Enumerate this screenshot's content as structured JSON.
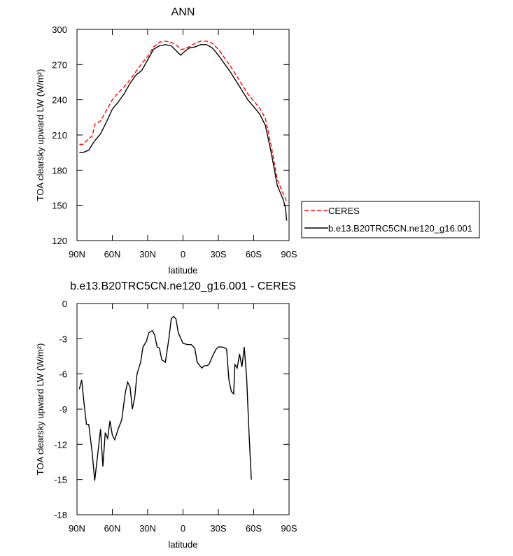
{
  "chart_data": [
    {
      "type": "line",
      "title": "ANN",
      "xlabel": "latitude",
      "ylabel": "TOA clearsky upward LW (W/m²)",
      "x": [
        88,
        85,
        80,
        77,
        75,
        70,
        65,
        60,
        55,
        50,
        45,
        40,
        35,
        30,
        25,
        20,
        15,
        10,
        5,
        2,
        0,
        -5,
        -10,
        -15,
        -20,
        -25,
        -30,
        -35,
        -40,
        -45,
        -50,
        -55,
        -60,
        -65,
        -70,
        -75,
        -80,
        -85,
        -87,
        -88
      ],
      "series": [
        {
          "name": "CERES",
          "color": "#ff0000",
          "dashed": true,
          "values": [
            202,
            202,
            207,
            209,
            219,
            222,
            231,
            240,
            246,
            251,
            257,
            264,
            271,
            277,
            285,
            289,
            290,
            289,
            286,
            283,
            283,
            285,
            288,
            290,
            290,
            288,
            283,
            276,
            269,
            261,
            253,
            245,
            239,
            233,
            224,
            200,
            172,
            160,
            156,
            152
          ]
        },
        {
          "name": "b.e13.B20TRC5CN.ne120_g16.001",
          "color": "#000000",
          "dashed": false,
          "values": [
            195,
            195,
            197,
            202,
            205,
            211,
            221,
            232,
            238,
            245,
            254,
            261,
            265,
            274,
            283,
            286,
            287,
            286,
            281,
            278,
            280,
            284,
            285,
            287,
            287,
            284,
            278,
            271,
            264,
            256,
            248,
            240,
            234,
            228,
            218,
            194,
            167,
            155,
            148,
            137
          ]
        }
      ],
      "xlim": [
        90,
        -90
      ],
      "xticks": [
        {
          "value": 90,
          "label": "90N"
        },
        {
          "value": 60,
          "label": "60N"
        },
        {
          "value": 30,
          "label": "30N"
        },
        0,
        {
          "value": -30,
          "label": "30S"
        },
        {
          "value": -60,
          "label": "60S"
        },
        {
          "value": -90,
          "label": "90S"
        }
      ],
      "ylim": [
        120,
        300
      ],
      "yticks": [
        120,
        150,
        180,
        210,
        240,
        270,
        300
      ],
      "legend": "right"
    },
    {
      "type": "line",
      "title": "b.e13.B20TRC5CN.ne120_g16.001 - CERES",
      "xlabel": "latitude",
      "ylabel": "TOA clearsky upward LW (W/m²)",
      "x": [
        88,
        86,
        84,
        82,
        80,
        77,
        75,
        72,
        70,
        68,
        66,
        64,
        62,
        60,
        58,
        55,
        52,
        49,
        47,
        45,
        43,
        41,
        39,
        36,
        34,
        31,
        29,
        26,
        24,
        22,
        20,
        18,
        15,
        12,
        10,
        8,
        6,
        4,
        0,
        -4,
        -7,
        -10,
        -12,
        -16,
        -18,
        -20,
        -22,
        -25,
        -28,
        -30,
        -33,
        -36,
        -37,
        -39,
        -41,
        -43,
        -44,
        -46,
        -48,
        -50,
        -52,
        -54,
        -56,
        -58
      ],
      "color": "#000000",
      "values": [
        -7.3,
        -6.5,
        -8.5,
        -10.3,
        -10.3,
        -12.8,
        -15.1,
        -12.5,
        -10.7,
        -13.9,
        -11,
        -11.5,
        -10,
        -11.2,
        -11.6,
        -10.7,
        -9.9,
        -7.6,
        -6.7,
        -7.1,
        -9,
        -8,
        -6,
        -5,
        -3.7,
        -3.2,
        -2.5,
        -2.3,
        -2.7,
        -3.7,
        -3.8,
        -4.8,
        -5,
        -3,
        -1.3,
        -1.1,
        -1.3,
        -2.5,
        -3.4,
        -3.5,
        -3.5,
        -3.8,
        -5,
        -5.5,
        -5.3,
        -5.3,
        -5.2,
        -4.5,
        -3.9,
        -3.7,
        -3.7,
        -3.8,
        -3.9,
        -6.5,
        -7.5,
        -7.7,
        -5.2,
        -5.5,
        -4.3,
        -5.4,
        -3.7,
        -6.3,
        -11,
        -15
      ],
      "xlim": [
        90,
        -90
      ],
      "xticks": [
        {
          "value": 90,
          "label": "90N"
        },
        {
          "value": 60,
          "label": "60N"
        },
        {
          "value": 30,
          "label": "30N"
        },
        0,
        {
          "value": -30,
          "label": "30S"
        },
        {
          "value": -60,
          "label": "60S"
        },
        {
          "value": -90,
          "label": "90S"
        }
      ],
      "ylim": [
        -18,
        0
      ],
      "yticks": [
        -18,
        -15,
        -12,
        -9,
        -6,
        -3,
        0
      ]
    }
  ]
}
